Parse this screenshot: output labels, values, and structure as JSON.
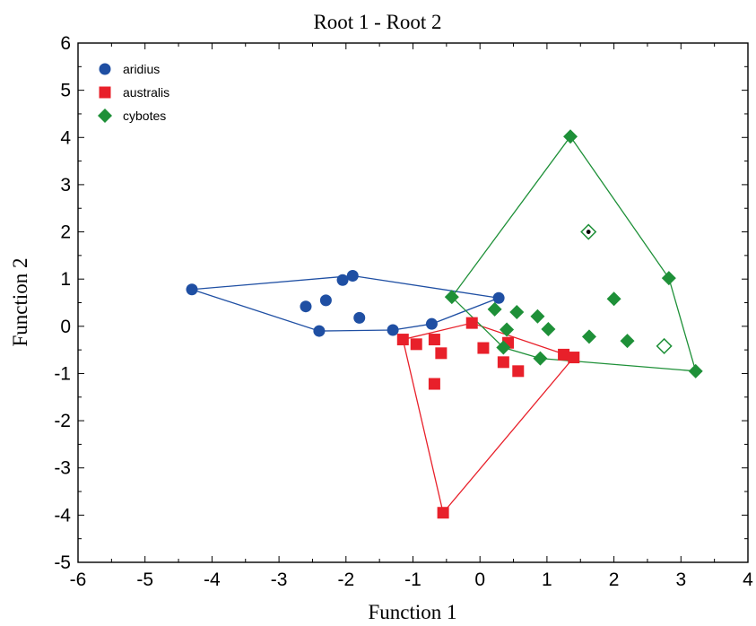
{
  "chart_data": {
    "type": "scatter",
    "title": "Root 1 - Root 2",
    "xlabel": "Function 1",
    "ylabel": "Function 2",
    "xlim": [
      -6,
      4
    ],
    "ylim": [
      -5,
      6
    ],
    "xticks": [
      "-6",
      "-5",
      "-4",
      "-3",
      "-2",
      "-1",
      "0",
      "1",
      "2",
      "3",
      "4"
    ],
    "yticks": [
      "-5",
      "-4",
      "-3",
      "-2",
      "-1",
      "0",
      "1",
      "2",
      "3",
      "4",
      "5",
      "6"
    ],
    "grid": false,
    "legend_position": "top-left",
    "series": [
      {
        "name": "aridius",
        "marker": "circle",
        "color": "#1f4fa3",
        "points": [
          [
            -4.3,
            0.78
          ],
          [
            -2.6,
            0.42
          ],
          [
            -2.4,
            -0.1
          ],
          [
            -2.3,
            0.55
          ],
          [
            -2.05,
            0.98
          ],
          [
            -1.9,
            1.07
          ],
          [
            -1.8,
            0.18
          ],
          [
            -1.3,
            -0.08
          ],
          [
            -0.72,
            0.05
          ],
          [
            0.28,
            0.6
          ]
        ],
        "hull": [
          [
            -4.3,
            0.78
          ],
          [
            -1.9,
            1.07
          ],
          [
            0.28,
            0.6
          ],
          [
            -0.72,
            0.05
          ],
          [
            -1.3,
            -0.08
          ],
          [
            -2.4,
            -0.1
          ]
        ]
      },
      {
        "name": "australis",
        "marker": "square",
        "color": "#e8202a",
        "points": [
          [
            -1.15,
            -0.28
          ],
          [
            -0.95,
            -0.38
          ],
          [
            -0.68,
            -0.28
          ],
          [
            -0.58,
            -0.57
          ],
          [
            -0.68,
            -1.22
          ],
          [
            -0.55,
            -3.95
          ],
          [
            -0.12,
            0.07
          ],
          [
            0.05,
            -0.46
          ],
          [
            0.35,
            -0.76
          ],
          [
            0.42,
            -0.35
          ],
          [
            0.57,
            -0.95
          ],
          [
            1.25,
            -0.6
          ],
          [
            1.4,
            -0.66
          ]
        ],
        "hull": [
          [
            -1.15,
            -0.28
          ],
          [
            -0.12,
            0.07
          ],
          [
            1.4,
            -0.66
          ],
          [
            -0.55,
            -3.95
          ]
        ]
      },
      {
        "name": "cybotes",
        "marker": "diamond",
        "color": "#1e9038",
        "points": [
          [
            -0.42,
            0.62
          ],
          [
            0.22,
            0.36
          ],
          [
            0.35,
            -0.45
          ],
          [
            0.4,
            -0.07
          ],
          [
            0.55,
            0.3
          ],
          [
            0.86,
            0.21
          ],
          [
            0.9,
            -0.68
          ],
          [
            1.02,
            -0.06
          ],
          [
            1.35,
            4.02
          ],
          [
            1.63,
            -0.22
          ],
          [
            2.0,
            0.58
          ],
          [
            2.2,
            -0.31
          ],
          [
            2.82,
            1.02
          ],
          [
            3.22,
            -0.95
          ]
        ],
        "special_points": [
          {
            "marker": "open-diamond-dot",
            "point": [
              1.62,
              2.0
            ]
          },
          {
            "marker": "open-diamond",
            "point": [
              2.75,
              -0.42
            ]
          }
        ],
        "hull": [
          [
            -0.42,
            0.62
          ],
          [
            1.35,
            4.02
          ],
          [
            2.82,
            1.02
          ],
          [
            3.22,
            -0.95
          ],
          [
            0.9,
            -0.68
          ],
          [
            0.35,
            -0.45
          ]
        ]
      }
    ]
  }
}
